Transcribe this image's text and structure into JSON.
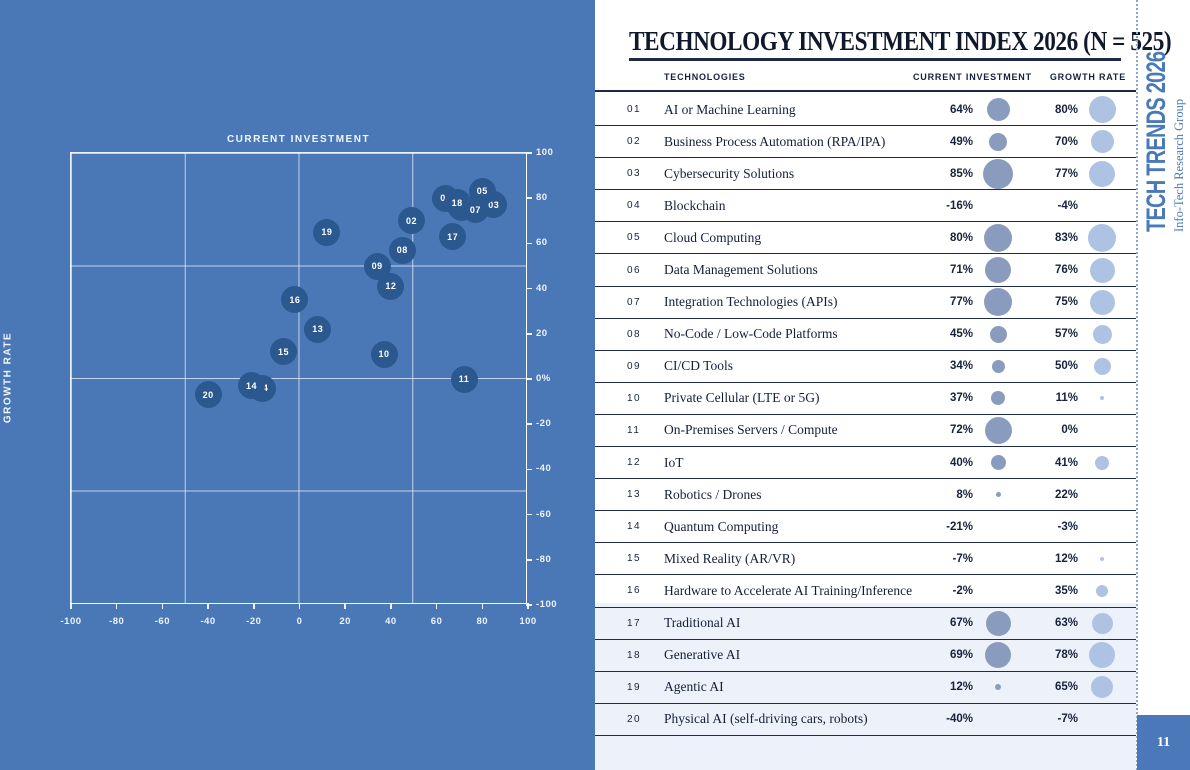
{
  "header": {
    "title": "TECHNOLOGY INVESTMENT INDEX 2026  (N = 525)"
  },
  "sidebar": {
    "brand": "TECH TRENDS 2026",
    "brand_sub": "Info-Tech Research Group",
    "page_number": "11"
  },
  "table": {
    "columns": {
      "tech": "TECHNOLOGIES",
      "ci": "CURRENT INVESTMENT",
      "gr": "GROWTH RATE"
    },
    "rows": [
      {
        "num": "01",
        "name": "AI or Machine Learning",
        "ci": "64%",
        "gr": "80%",
        "ci_dot": 23,
        "gr_dot": 27
      },
      {
        "num": "02",
        "name": "Business Process Automation (RPA/IPA)",
        "ci": "49%",
        "gr": "70%",
        "ci_dot": 18,
        "gr_dot": 23
      },
      {
        "num": "03",
        "name": "Cybersecurity Solutions",
        "ci": "85%",
        "gr": "77%",
        "ci_dot": 30,
        "gr_dot": 26
      },
      {
        "num": "04",
        "name": "Blockchain",
        "ci": "-16%",
        "gr": "-4%",
        "ci_dot": 0,
        "gr_dot": 0
      },
      {
        "num": "05",
        "name": "Cloud Computing",
        "ci": "80%",
        "gr": "83%",
        "ci_dot": 28,
        "gr_dot": 28
      },
      {
        "num": "06",
        "name": "Data Management Solutions",
        "ci": "71%",
        "gr": "76%",
        "ci_dot": 26,
        "gr_dot": 25
      },
      {
        "num": "07",
        "name": "Integration Technologies (APIs)",
        "ci": "77%",
        "gr": "75%",
        "ci_dot": 28,
        "gr_dot": 25
      },
      {
        "num": "08",
        "name": "No-Code / Low-Code Platforms",
        "ci": "45%",
        "gr": "57%",
        "ci_dot": 17,
        "gr_dot": 19
      },
      {
        "num": "09",
        "name": "CI/CD Tools",
        "ci": "34%",
        "gr": "50%",
        "ci_dot": 13,
        "gr_dot": 17
      },
      {
        "num": "10",
        "name": "Private Cellular (LTE or 5G)",
        "ci": "37%",
        "gr": "11%",
        "ci_dot": 14,
        "gr_dot": 4
      },
      {
        "num": "11",
        "name": "On-Premises Servers / Compute",
        "ci": "72%",
        "gr": "0%",
        "ci_dot": 27,
        "gr_dot": 0
      },
      {
        "num": "12",
        "name": "IoT",
        "ci": "40%",
        "gr": "41%",
        "ci_dot": 15,
        "gr_dot": 14
      },
      {
        "num": "13",
        "name": "Robotics / Drones",
        "ci": "8%",
        "gr": "22%",
        "ci_dot": 5,
        "gr_dot": 0
      },
      {
        "num": "14",
        "name": "Quantum Computing",
        "ci": "-21%",
        "gr": "-3%",
        "ci_dot": 0,
        "gr_dot": 0
      },
      {
        "num": "15",
        "name": "Mixed Reality (AR/VR)",
        "ci": "-7%",
        "gr": "12%",
        "ci_dot": 0,
        "gr_dot": 4
      },
      {
        "num": "16",
        "name": "Hardware to Accelerate AI Training/Inference",
        "ci": "-2%",
        "gr": "35%",
        "ci_dot": 0,
        "gr_dot": 12
      },
      {
        "num": "17",
        "name": "Traditional AI",
        "ci": "67%",
        "gr": "63%",
        "ci_dot": 25,
        "gr_dot": 21
      },
      {
        "num": "18",
        "name": "Generative AI",
        "ci": "69%",
        "gr": "78%",
        "ci_dot": 26,
        "gr_dot": 26
      },
      {
        "num": "19",
        "name": "Agentic AI",
        "ci": "12%",
        "gr": "65%",
        "ci_dot": 6,
        "gr_dot": 22
      },
      {
        "num": "20",
        "name": "Physical AI (self-driving cars, robots)",
        "ci": "-40%",
        "gr": "-7%",
        "ci_dot": 0,
        "gr_dot": 0
      }
    ]
  },
  "chart_data": {
    "type": "scatter",
    "title": "",
    "xlabel": "CURRENT INVESTMENT",
    "ylabel": "GROWTH RATE",
    "xlim": [
      -100,
      100
    ],
    "ylim": [
      -100,
      100
    ],
    "grid": true,
    "gridlines_at": [
      -50,
      0,
      50
    ],
    "x_ticks": [
      "-100",
      "-80",
      "-60",
      "-40",
      "-20",
      "0",
      "20",
      "40",
      "60",
      "80",
      "100"
    ],
    "y_ticks": [
      "100",
      "80",
      "60",
      "40",
      "20",
      "0%",
      "-20",
      "-40",
      "-60",
      "-80",
      "-100"
    ],
    "points": [
      {
        "id": "01",
        "name": "AI or Machine Learning",
        "x": 64,
        "y": 80
      },
      {
        "id": "02",
        "name": "Business Process Automation (RPA/IPA)",
        "x": 49,
        "y": 70
      },
      {
        "id": "03",
        "name": "Cybersecurity Solutions",
        "x": 85,
        "y": 77
      },
      {
        "id": "04",
        "name": "Blockchain",
        "x": -16,
        "y": -4
      },
      {
        "id": "05",
        "name": "Cloud Computing",
        "x": 80,
        "y": 83
      },
      {
        "id": "06",
        "name": "Data Management Solutions",
        "x": 71,
        "y": 76
      },
      {
        "id": "07",
        "name": "Integration Technologies (APIs)",
        "x": 77,
        "y": 75
      },
      {
        "id": "08",
        "name": "No-Code / Low-Code Platforms",
        "x": 45,
        "y": 57
      },
      {
        "id": "09",
        "name": "CI/CD Tools",
        "x": 34,
        "y": 50
      },
      {
        "id": "10",
        "name": "Private Cellular (LTE or 5G)",
        "x": 37,
        "y": 11
      },
      {
        "id": "11",
        "name": "On-Premises Servers / Compute",
        "x": 72,
        "y": 0
      },
      {
        "id": "12",
        "name": "IoT",
        "x": 40,
        "y": 41
      },
      {
        "id": "13",
        "name": "Robotics / Drones",
        "x": 8,
        "y": 22
      },
      {
        "id": "14",
        "name": "Quantum Computing",
        "x": -21,
        "y": -3
      },
      {
        "id": "15",
        "name": "Mixed Reality (AR/VR)",
        "x": -7,
        "y": 12
      },
      {
        "id": "16",
        "name": "Hardware to Accelerate AI Training/Inference",
        "x": -2,
        "y": 35
      },
      {
        "id": "17",
        "name": "Traditional AI",
        "x": 67,
        "y": 63
      },
      {
        "id": "18",
        "name": "Generative AI",
        "x": 69,
        "y": 78
      },
      {
        "id": "19",
        "name": "Agentic AI",
        "x": 12,
        "y": 65
      },
      {
        "id": "20",
        "name": "Physical AI (self-driving cars, robots)",
        "x": -40,
        "y": -7
      }
    ]
  },
  "colors": {
    "panel_blue": "#4a78b6",
    "scatter_point": "#2a588f",
    "navy_text": "#16223c",
    "rule": "#1d2a47",
    "ci_bubble": "#8a9cbe",
    "gr_bubble": "#aec3e3",
    "highlight_bg": "#edf1f9",
    "brand_blue": "#4a79b7",
    "page_box": "#4a78b8"
  }
}
